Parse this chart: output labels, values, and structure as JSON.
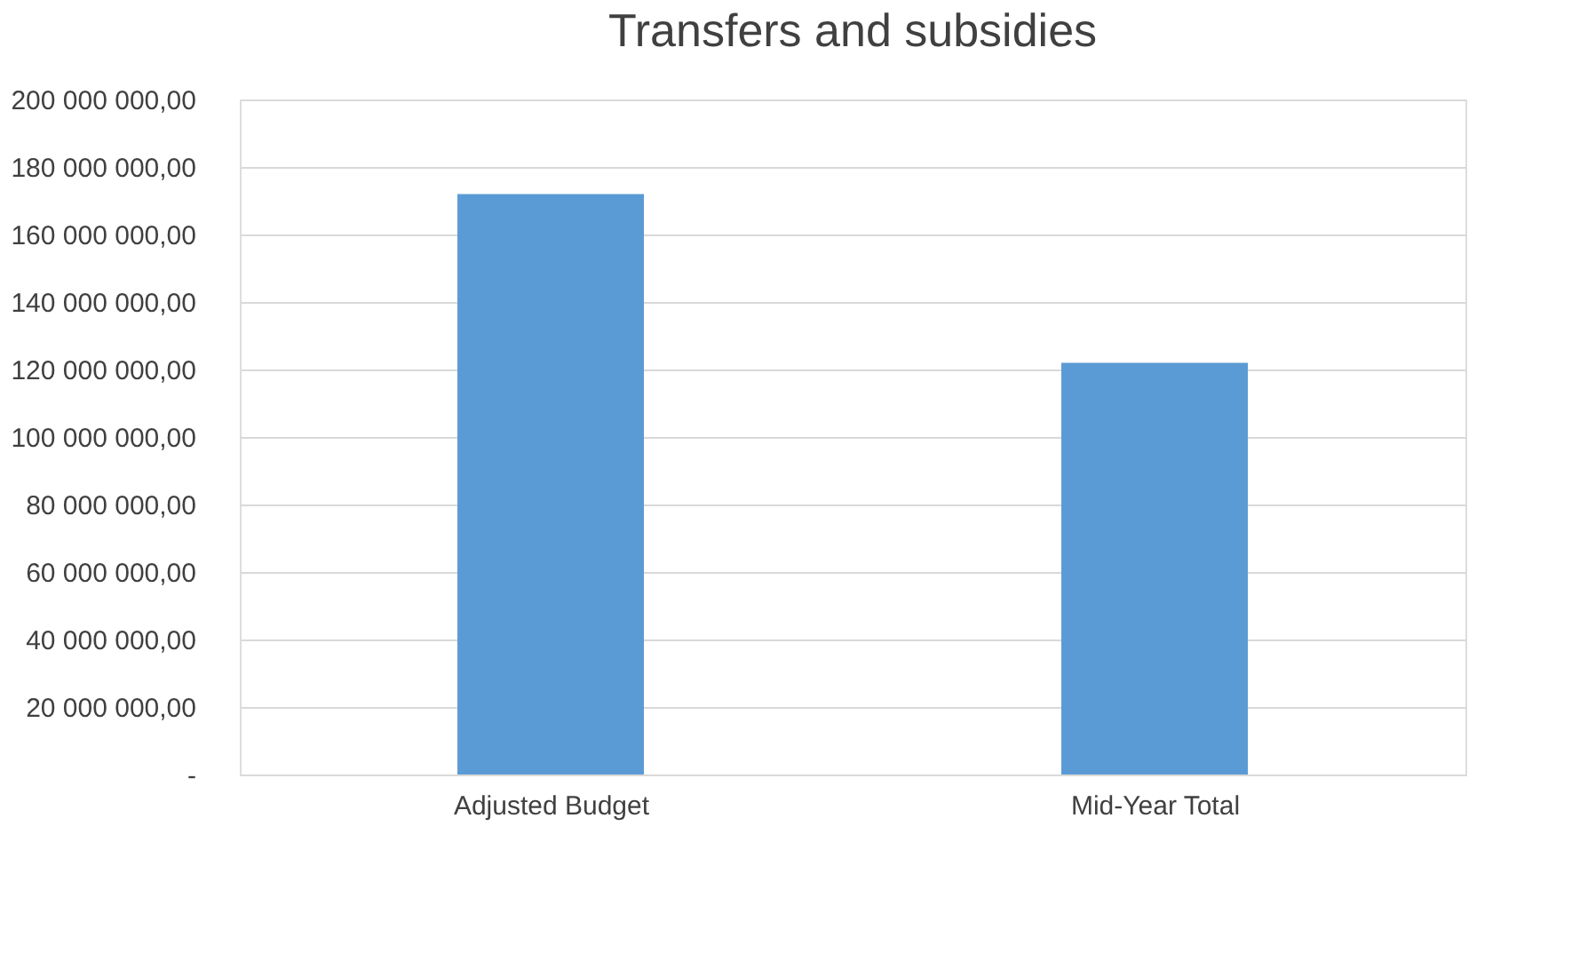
{
  "chart_data": {
    "type": "bar",
    "title": "Transfers and subsidies",
    "categories": [
      "Adjusted Budget",
      "Mid-Year Total"
    ],
    "values": [
      172000000,
      122000000
    ],
    "color": "#5b9bd5",
    "ylim": [
      0,
      200000000
    ],
    "yticks": [
      {
        "value": 0,
        "label": "-"
      },
      {
        "value": 20000000,
        "label": "20 000 000,00"
      },
      {
        "value": 40000000,
        "label": "40 000 000,00"
      },
      {
        "value": 60000000,
        "label": "60 000 000,00"
      },
      {
        "value": 80000000,
        "label": "80 000 000,00"
      },
      {
        "value": 100000000,
        "label": "100 000 000,00"
      },
      {
        "value": 120000000,
        "label": "120 000 000,00"
      },
      {
        "value": 140000000,
        "label": "140 000 000,00"
      },
      {
        "value": 160000000,
        "label": "160 000 000,00"
      },
      {
        "value": 180000000,
        "label": "180 000 000,00"
      },
      {
        "value": 200000000,
        "label": "200 000 000,00"
      }
    ],
    "grid": "y"
  }
}
